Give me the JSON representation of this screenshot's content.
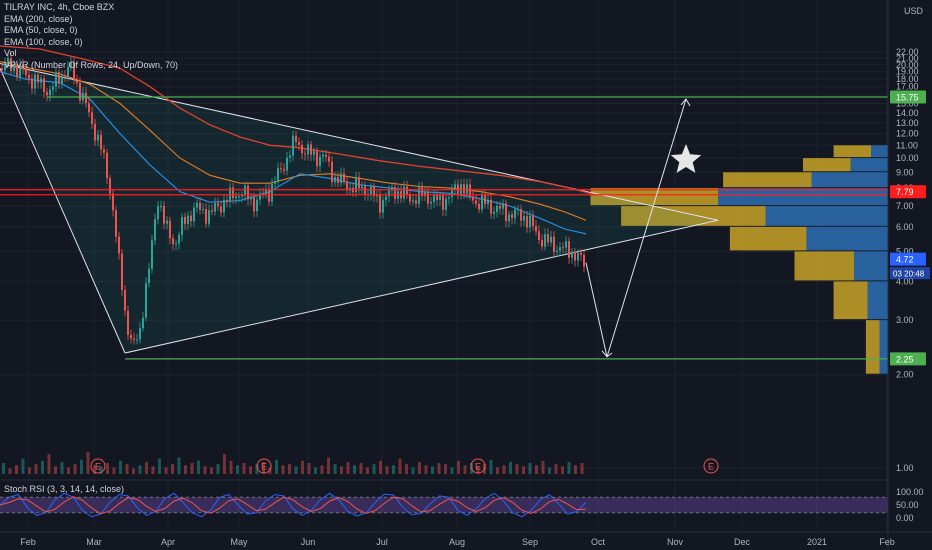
{
  "header": {
    "symbol": "TILRAY INC, 4h, Cboe BZX",
    "indicators": [
      "EMA (200, close)",
      "EMA (50, close, 0)",
      "EMA (100, close, 0)",
      "Vol",
      "VPVR (Number Of Rows, 24, Up/Down, 70)"
    ],
    "currency": "USD",
    "stoch_label": "Stoch RSI (3, 3, 14, 14, close)"
  },
  "colors": {
    "background": "#131722",
    "grid": "#1e222d",
    "up": "#26a69a",
    "down": "#ef5350",
    "ema200": "#e0412f",
    "ema50": "#2196f3",
    "ema100": "#e67e22",
    "green_line": "#4caf50",
    "red_line": "#ff1e1e",
    "vp_up": "#2e6fb5",
    "vp_down": "#c9a227",
    "stoch_k": "#2962ff",
    "stoch_d": "#ef5350",
    "stoch_band": "#7e57c2"
  },
  "chart_data": {
    "type": "candlestick",
    "title": "TILRAY INC, 4h, Cboe BZX",
    "y_axis": {
      "ticks": [
        "1.00",
        "2.00",
        "3.00",
        "4.00",
        "5.00",
        "6.00",
        "7.00",
        "8.00",
        "9.00",
        "10.00",
        "11.00",
        "12.00",
        "13.00",
        "14.00",
        "15.00",
        "16.00",
        "17.00",
        "18.00",
        "19.00",
        "20.00",
        "21.00",
        "22.00"
      ],
      "range": [
        0.5,
        23
      ]
    },
    "x_axis": {
      "ticks": [
        "Feb",
        "Mar",
        "Apr",
        "May",
        "Jun",
        "Jul",
        "Aug",
        "Sep",
        "Oct",
        "Nov",
        "Dec",
        "2021",
        "Feb"
      ]
    },
    "price_path": [
      [
        0,
        19.5
      ],
      [
        12,
        20
      ],
      [
        25,
        18.6
      ],
      [
        38,
        17.5
      ],
      [
        50,
        16.4
      ],
      [
        60,
        18.5
      ],
      [
        70,
        19.5
      ],
      [
        80,
        16.5
      ],
      [
        90,
        13.5
      ],
      [
        100,
        11
      ],
      [
        110,
        8
      ],
      [
        118,
        4.8
      ],
      [
        126,
        3
      ],
      [
        133,
        2.4
      ],
      [
        140,
        2.8
      ],
      [
        150,
        4.5
      ],
      [
        158,
        7.5
      ],
      [
        165,
        6
      ],
      [
        175,
        5.3
      ],
      [
        185,
        6.3
      ],
      [
        195,
        6.9
      ],
      [
        210,
        6.6
      ],
      [
        225,
        7.3
      ],
      [
        240,
        7.8
      ],
      [
        255,
        7.2
      ],
      [
        270,
        7.9
      ],
      [
        280,
        9
      ],
      [
        288,
        10.2
      ],
      [
        296,
        11.4
      ],
      [
        305,
        10.5
      ],
      [
        315,
        10.2
      ],
      [
        325,
        10
      ],
      [
        335,
        8.6
      ],
      [
        350,
        8.1
      ],
      [
        365,
        8
      ],
      [
        380,
        7.2
      ],
      [
        395,
        7.9
      ],
      [
        410,
        7.4
      ],
      [
        425,
        7.6
      ],
      [
        440,
        7.2
      ],
      [
        450,
        7.6
      ],
      [
        462,
        8.3
      ],
      [
        470,
        7.4
      ],
      [
        480,
        7.2
      ],
      [
        495,
        6.9
      ],
      [
        510,
        6.6
      ],
      [
        525,
        6.5
      ],
      [
        538,
        5.6
      ],
      [
        550,
        5.3
      ],
      [
        562,
        5.1
      ],
      [
        572,
        5
      ],
      [
        580,
        4.7
      ],
      [
        586,
        4.5
      ]
    ],
    "ema50": [
      [
        0,
        19
      ],
      [
        25,
        18
      ],
      [
        60,
        17.5
      ],
      [
        90,
        15.5
      ],
      [
        120,
        12
      ],
      [
        150,
        9.5
      ],
      [
        180,
        7.8
      ],
      [
        210,
        7.2
      ],
      [
        240,
        7.3
      ],
      [
        270,
        7.8
      ],
      [
        300,
        8.9
      ],
      [
        330,
        8.6
      ],
      [
        360,
        8.2
      ],
      [
        390,
        8
      ],
      [
        420,
        7.8
      ],
      [
        450,
        7.7
      ],
      [
        480,
        7.4
      ],
      [
        510,
        7
      ],
      [
        540,
        6.4
      ],
      [
        565,
        5.9
      ],
      [
        586,
        5.7
      ]
    ],
    "ema100": [
      [
        0,
        20.5
      ],
      [
        30,
        19.5
      ],
      [
        60,
        18.7
      ],
      [
        90,
        17.3
      ],
      [
        120,
        15
      ],
      [
        150,
        12.3
      ],
      [
        180,
        10
      ],
      [
        210,
        8.8
      ],
      [
        240,
        8.3
      ],
      [
        270,
        8.3
      ],
      [
        300,
        8.8
      ],
      [
        330,
        8.9
      ],
      [
        360,
        8.6
      ],
      [
        390,
        8.3
      ],
      [
        420,
        8.1
      ],
      [
        450,
        8
      ],
      [
        480,
        7.8
      ],
      [
        510,
        7.5
      ],
      [
        540,
        7.1
      ],
      [
        565,
        6.7
      ],
      [
        586,
        6.3
      ]
    ],
    "ema200": [
      [
        0,
        23
      ],
      [
        40,
        22.5
      ],
      [
        80,
        21
      ],
      [
        120,
        19.5
      ],
      [
        150,
        17
      ],
      [
        180,
        14.5
      ],
      [
        210,
        12.8
      ],
      [
        240,
        11.7
      ],
      [
        270,
        11
      ],
      [
        300,
        10.8
      ],
      [
        340,
        10.3
      ],
      [
        380,
        9.8
      ],
      [
        420,
        9.4
      ],
      [
        460,
        9.1
      ],
      [
        500,
        8.8
      ],
      [
        540,
        8.4
      ],
      [
        570,
        8
      ],
      [
        596,
        7.6
      ]
    ],
    "volume": [
      10,
      5,
      8,
      14,
      6,
      9,
      12,
      18,
      7,
      11,
      6,
      9,
      13,
      20,
      8,
      7,
      10,
      6,
      12,
      9,
      5,
      8,
      11,
      7,
      14,
      6,
      9,
      15,
      8,
      10,
      12,
      7,
      6,
      9,
      18,
      12,
      8,
      10,
      7,
      9,
      11,
      6,
      13,
      8,
      9,
      7,
      12,
      10,
      6,
      8,
      15,
      9,
      7,
      11,
      8,
      10,
      6,
      9,
      12,
      7,
      8,
      14,
      9,
      6,
      11,
      8,
      7,
      10,
      9,
      6,
      12,
      8,
      10,
      7,
      9,
      13,
      6,
      8,
      11,
      9,
      7,
      10,
      8,
      12,
      6,
      9,
      7,
      11,
      8,
      10
    ],
    "stoch_rsi": [
      50,
      80,
      90,
      40,
      10,
      20,
      70,
      95,
      80,
      30,
      5,
      15,
      60,
      90,
      85,
      40,
      10,
      25,
      75,
      95,
      60,
      20,
      5,
      30,
      80,
      90,
      50,
      15,
      20,
      65,
      90,
      85,
      35,
      10,
      30,
      70,
      95,
      70,
      25,
      8,
      20,
      60,
      92,
      88,
      40,
      12,
      18,
      55,
      85,
      80,
      30,
      10,
      35,
      75,
      95,
      65,
      20,
      5,
      28,
      70,
      90,
      55,
      15,
      25,
      60
    ],
    "overlays": {
      "horizontal_levels": [
        15.75,
        7.79,
        2.25
      ],
      "price_labels": [
        "15.75",
        "7.79",
        "4.72",
        "2.25"
      ],
      "countdown": "03 20:48",
      "earnings_marker": "E"
    },
    "volume_profile": [
      {
        "price": 10.5,
        "up": 10,
        "down": 22
      },
      {
        "price": 9.5,
        "up": 22,
        "down": 28
      },
      {
        "price": 8.5,
        "up": 45,
        "down": 52
      },
      {
        "price": 7.5,
        "up": 100,
        "down": 75
      },
      {
        "price": 6.5,
        "up": 72,
        "down": 85
      },
      {
        "price": 5.5,
        "up": 48,
        "down": 45
      },
      {
        "price": 4.5,
        "up": 20,
        "down": 35
      },
      {
        "price": 3.5,
        "up": 12,
        "down": 20
      },
      {
        "price": 2.5,
        "up": 5,
        "down": 8
      }
    ],
    "stoch_axis": {
      "ticks": [
        "100.00",
        "50.00",
        "0.00"
      ]
    }
  }
}
